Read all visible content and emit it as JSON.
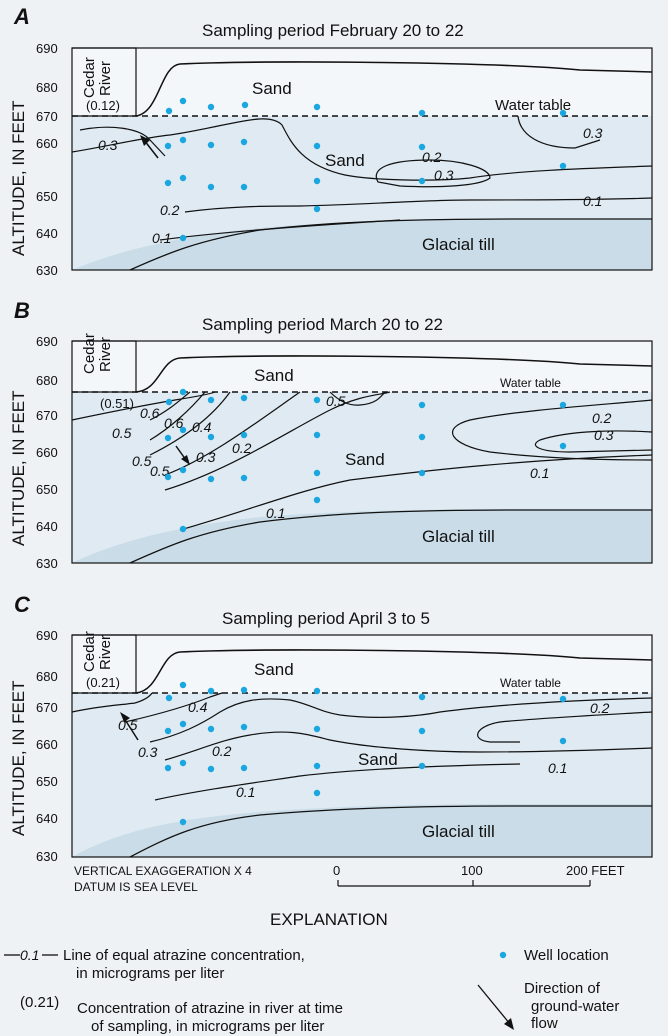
{
  "panels": [
    {
      "letter": "A",
      "title": "Sampling period February 20 to 22",
      "river_label": [
        "Cedar",
        "River"
      ],
      "river_concentration": "(0.12)",
      "water_table": "Water table",
      "upper_sand": "Sand",
      "middle_sand": "Sand",
      "till": "Glacial till",
      "contour_labels": [
        "0.3",
        "0.2",
        "0.3",
        "0.3",
        "0.2",
        "0.1",
        "0.1"
      ]
    },
    {
      "letter": "B",
      "title": "Sampling period March 20 to 22",
      "river_label": [
        "Cedar",
        "River"
      ],
      "river_concentration": "(0.51)",
      "water_table": "Water table",
      "upper_sand": "Sand",
      "middle_sand": "Sand",
      "till": "Glacial till",
      "contour_labels": [
        "0.5",
        "0.6",
        "0.6",
        "0.5",
        "0.4",
        "0.5",
        "0.3",
        "0.2",
        "0.1",
        "0.2",
        "0.3",
        "0.1"
      ]
    },
    {
      "letter": "C",
      "title": "Sampling period April 3 to 5",
      "river_label": [
        "Cedar",
        "River"
      ],
      "river_concentration": "(0.21)",
      "water_table": "Water table",
      "upper_sand": "Sand",
      "middle_sand": "Sand",
      "till": "Glacial till",
      "contour_labels": [
        "0.5",
        "0.4",
        "0.3",
        "0.2",
        "0.1",
        "0.2",
        "0.1"
      ]
    }
  ],
  "y_axis_label": "ALTITUDE, IN FEET",
  "y_ticks": [
    "690",
    "680",
    "670",
    "660",
    "650",
    "640",
    "630"
  ],
  "footer": {
    "exaggeration": "VERTICAL EXAGGERATION X 4",
    "datum": "DATUM IS SEA LEVEL",
    "scale_labels": [
      "0",
      "100",
      "200 FEET"
    ]
  },
  "explanation": {
    "title": "EXPLANATION",
    "contour_sample": "0.1",
    "contour_text": [
      "Line of equal atrazine concentration,",
      "in micrograms per liter"
    ],
    "conc_sample": "(0.21)",
    "conc_text": [
      "Concentration of atrazine in river at time",
      "of sampling, in micrograms  per liter"
    ],
    "well_text": "Well location",
    "flow_text": [
      "Direction of",
      "ground-water",
      "flow"
    ]
  },
  "colors": {
    "background": "#eef2f4",
    "unsaturated": "#f4f7f9",
    "aquifer": "#dfeaf2",
    "till": "#c9dce8",
    "well": "#1aa7e0"
  }
}
